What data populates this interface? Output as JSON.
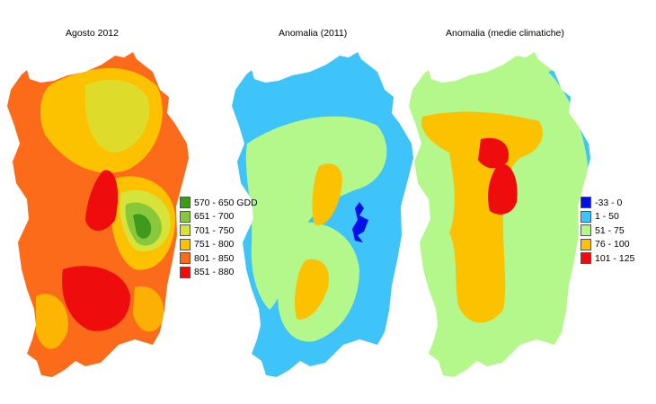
{
  "panels": [
    {
      "title": "Agosto 2012",
      "legend": [
        {
          "label": "570 - 650 GDD",
          "color": "#3d9a1a"
        },
        {
          "label": "651 - 700",
          "color": "#88c83a"
        },
        {
          "label": "701 - 750",
          "color": "#d6e33a"
        },
        {
          "label": "751 - 800",
          "color": "#fcc200"
        },
        {
          "label": "801 - 850",
          "color": "#fb6b1a"
        },
        {
          "label": "851 - 880",
          "color": "#ee0c0c"
        }
      ]
    },
    {
      "title": "Anomalia (2011)"
    },
    {
      "title": "Anomalia (medie climatiche)",
      "legend": [
        {
          "label": "-33 - 0",
          "color": "#0010e8"
        },
        {
          "label": "1 - 50",
          "color": "#3ec4f8"
        },
        {
          "label": "51 - 75",
          "color": "#b4f88c"
        },
        {
          "label": "76 - 100",
          "color": "#fcc200"
        },
        {
          "label": "101 - 125",
          "color": "#ee0c0c"
        }
      ]
    }
  ]
}
